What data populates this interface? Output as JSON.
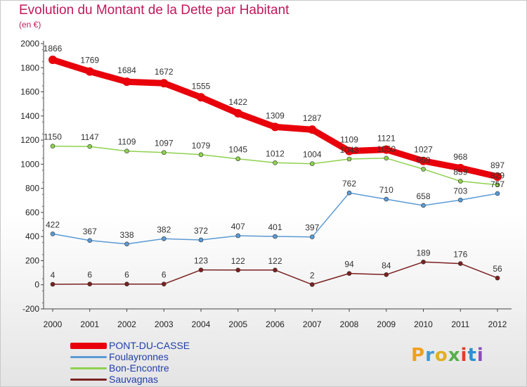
{
  "title": "Evolution du Montant de la Dette par Habitant",
  "subtitle": "(en €)",
  "logo_text": "Proxiti",
  "chart_data": {
    "type": "line",
    "title": "Evolution du Montant de la Dette par Habitant",
    "subtitle": "(en €)",
    "xlabel": "",
    "ylabel": "",
    "ylim": [
      -200,
      2000
    ],
    "yticks": [
      -200,
      0,
      200,
      400,
      600,
      800,
      1000,
      1200,
      1400,
      1600,
      1800,
      2000
    ],
    "x": [
      "2000",
      "2001",
      "2002",
      "2003",
      "2004",
      "2005",
      "2006",
      "2007",
      "2008",
      "2009",
      "2010",
      "2011",
      "2012"
    ],
    "grid": false,
    "legend_position": "bottom-left",
    "series": [
      {
        "name": "PONT-DU-CASSE",
        "color": "#e8000b",
        "values": [
          1866,
          1769,
          1684,
          1672,
          1555,
          1422,
          1309,
          1287,
          1109,
          1121,
          1027,
          968,
          897
        ]
      },
      {
        "name": "Foulayronnes",
        "color": "#5b9bd5",
        "values": [
          422,
          367,
          338,
          382,
          372,
          407,
          401,
          397,
          762,
          710,
          658,
          703,
          757
        ]
      },
      {
        "name": "Bon-Encontre",
        "color": "#8fd14f",
        "values": [
          1150,
          1147,
          1109,
          1097,
          1079,
          1045,
          1012,
          1004,
          1043,
          1050,
          959,
          859,
          829
        ]
      },
      {
        "name": "Sauvagnas",
        "color": "#7b2020",
        "values": [
          4,
          6,
          6,
          6,
          123,
          122,
          122,
          2,
          94,
          84,
          189,
          176,
          56
        ]
      }
    ]
  }
}
